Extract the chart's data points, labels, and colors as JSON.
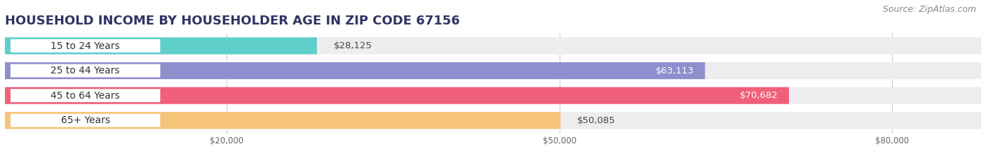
{
  "title": "HOUSEHOLD INCOME BY HOUSEHOLDER AGE IN ZIP CODE 67156",
  "source": "Source: ZipAtlas.com",
  "categories": [
    "15 to 24 Years",
    "25 to 44 Years",
    "45 to 64 Years",
    "65+ Years"
  ],
  "values": [
    28125,
    63113,
    70682,
    50085
  ],
  "bar_colors": [
    "#5ecfca",
    "#8f8fce",
    "#f0607a",
    "#f5c47a"
  ],
  "bar_labels": [
    "$28,125",
    "$63,113",
    "$70,682",
    "$50,085"
  ],
  "label_inside": [
    false,
    true,
    true,
    false
  ],
  "label_colors_inside": [
    "#333333",
    "#ffffff",
    "#ffffff",
    "#333333"
  ],
  "xmax": 88000,
  "xticks": [
    20000,
    50000,
    80000
  ],
  "xtick_labels": [
    "$20,000",
    "$50,000",
    "$80,000"
  ],
  "background_color": "#ffffff",
  "bar_bg_color": "#ededf0",
  "title_fontsize": 13,
  "source_fontsize": 9,
  "label_fontsize": 9.5,
  "category_fontsize": 10,
  "bar_height": 0.68,
  "bar_gap": 0.32
}
